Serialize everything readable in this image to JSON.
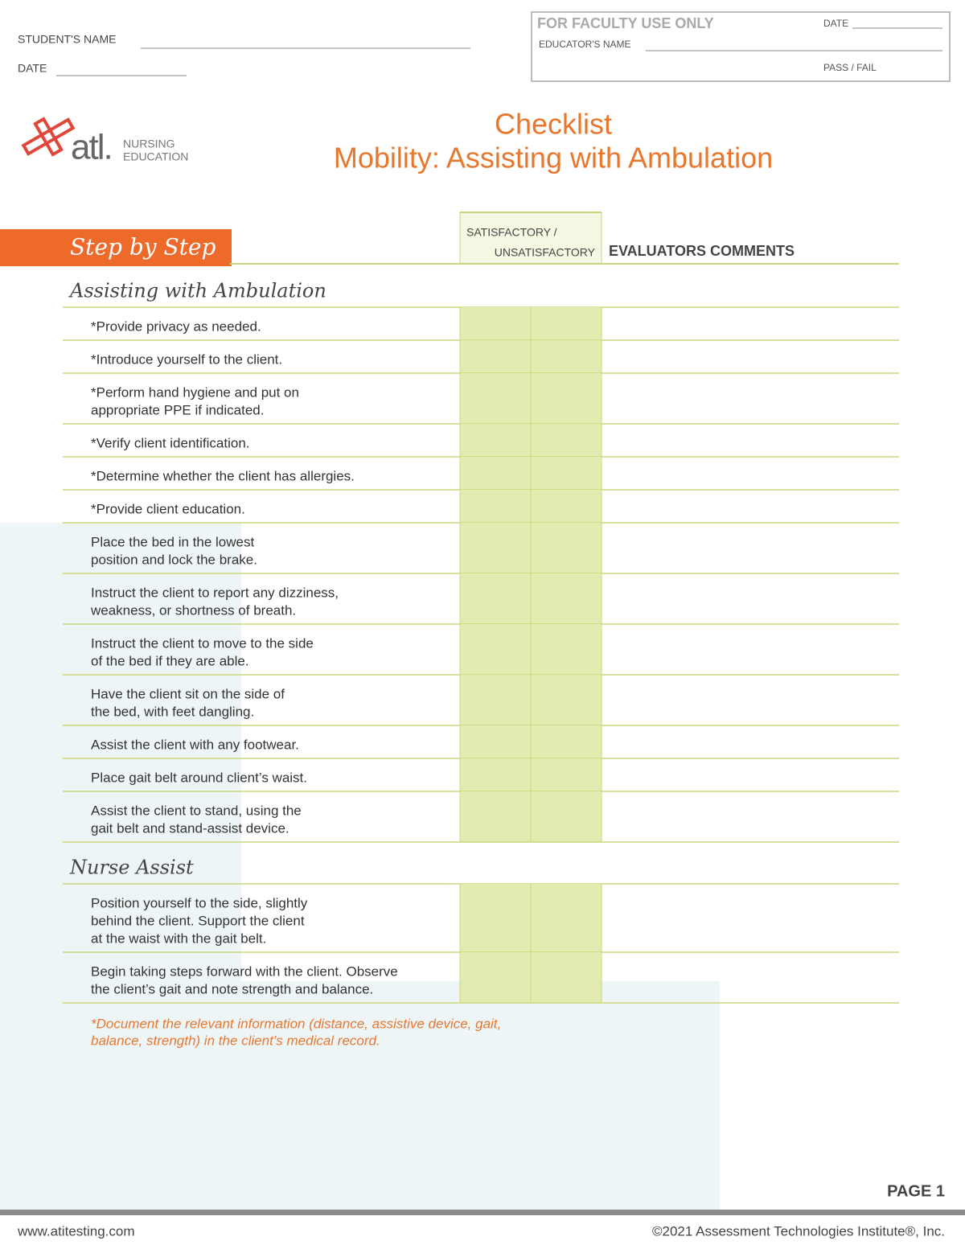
{
  "header": {
    "student_name_label": "STUDENT'S NAME",
    "date_label": "DATE"
  },
  "faculty": {
    "title": "FOR FACULTY USE ONLY",
    "date_label": "DATE",
    "educator_label": "EDUCATOR'S NAME",
    "pass_fail_label": "PASS / FAIL"
  },
  "logo": {
    "mark": "atl.",
    "line1": "NURSING",
    "line2": "EDUCATION"
  },
  "title": {
    "line1": "Checklist",
    "line2": "Mobility: Assisting with Ambulation"
  },
  "table": {
    "banner": "Step by Step",
    "col_satisfactory": "SATISFACTORY /",
    "col_unsatisfactory": "UNSATISFACTORY",
    "col_comments": "EVALUATORS COMMENTS",
    "sections": [
      {
        "title": "Assisting with Ambulation",
        "steps": [
          [
            "*Provide privacy as needed."
          ],
          [
            "*Introduce yourself to the client."
          ],
          [
            "*Perform hand hygiene and put on",
            "appropriate PPE if indicated."
          ],
          [
            "*Verify client identification."
          ],
          [
            "*Determine whether the client has allergies."
          ],
          [
            "*Provide client education."
          ],
          [
            "Place the bed in the lowest",
            "position and lock the brake."
          ],
          [
            "Instruct the client to report any dizziness,",
            "weakness, or shortness of breath."
          ],
          [
            "Instruct the client to move to the side",
            "of the bed if they are able."
          ],
          [
            "Have the client sit on the side of",
            "the bed, with feet dangling."
          ],
          [
            "Assist the client with any footwear."
          ],
          [
            "Place gait belt around client’s waist."
          ],
          [
            "Assist the client to stand, using the",
            "gait belt and stand-assist device."
          ]
        ]
      },
      {
        "title": "Nurse Assist",
        "steps": [
          [
            "Position yourself to the side, slightly",
            "behind the client. Support the client",
            "at the waist with the gait belt."
          ],
          [
            "Begin taking steps forward with the client. Observe",
            "the client’s gait and note strength and balance."
          ]
        ]
      }
    ]
  },
  "note": [
    "*Document the relevant information (distance, assistive device, gait,",
    "balance, strength) in the client’s medical record."
  ],
  "footer": {
    "page": "PAGE 1",
    "url": "www.atitesting.com",
    "copyright": "©2021 Assessment Technologies Institute®, Inc."
  }
}
